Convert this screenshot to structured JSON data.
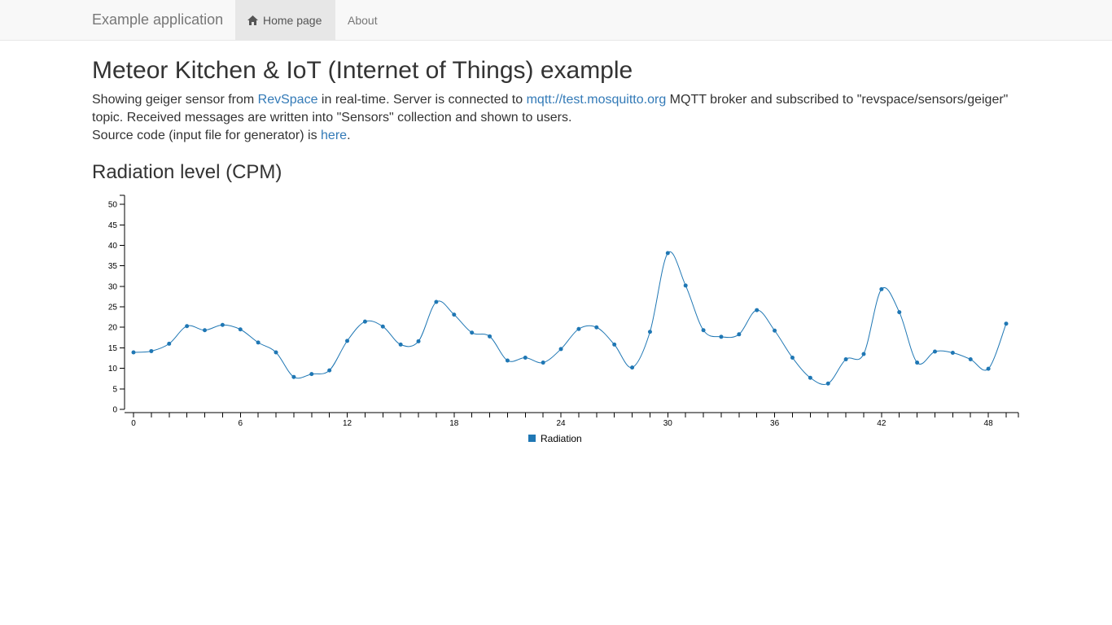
{
  "navbar": {
    "brand": "Example application",
    "items": [
      {
        "label": "Home page",
        "icon": "home-icon",
        "active": true
      },
      {
        "label": "About",
        "active": false
      }
    ]
  },
  "page": {
    "title": "Meteor Kitchen & IoT (Internet of Things) example",
    "description": {
      "part1": "Showing geiger sensor from ",
      "link1": "RevSpace",
      "part2": " in real-time. Server is connected to ",
      "link2": "mqtt://test.mosquitto.org",
      "part3": " MQTT broker and subscribed to \"revspace/sensors/geiger\" topic. Received messages are written into \"Sensors\" collection and shown to users.",
      "part4": "Source code (input file for generator) is ",
      "link3": "here",
      "part5": "."
    },
    "chart_title": "Radiation level (CPM)"
  },
  "colors": {
    "accent": "#1f77b4",
    "link": "#337ab7"
  },
  "chart_data": {
    "type": "line",
    "title": "Radiation level (CPM)",
    "xlabel": "",
    "ylabel": "",
    "x": [
      0,
      1,
      2,
      3,
      4,
      5,
      6,
      7,
      8,
      9,
      10,
      11,
      12,
      13,
      14,
      15,
      16,
      17,
      18,
      19,
      20,
      21,
      22,
      23,
      24,
      25,
      26,
      27,
      28,
      29,
      30,
      31,
      32,
      33,
      34,
      35,
      36,
      37,
      38,
      39,
      40,
      41,
      42,
      43,
      44,
      45,
      46,
      47,
      48,
      49
    ],
    "x_ticks": [
      "0",
      "6",
      "12",
      "18",
      "24",
      "30",
      "36",
      "42",
      "48"
    ],
    "y_ticks": [
      "0",
      "5",
      "10",
      "15",
      "20",
      "25",
      "30",
      "35",
      "40",
      "45",
      "50"
    ],
    "xlim": [
      0,
      49
    ],
    "ylim": [
      0,
      52
    ],
    "series": [
      {
        "name": "Radiation",
        "values": [
          13.9,
          14.2,
          16.0,
          20.3,
          19.3,
          20.6,
          19.5,
          16.3,
          13.9,
          7.9,
          8.6,
          9.5,
          16.7,
          21.4,
          20.2,
          15.8,
          16.6,
          26.2,
          23.1,
          18.7,
          17.8,
          11.9,
          12.6,
          11.4,
          14.7,
          19.6,
          20.0,
          15.8,
          10.2,
          18.9,
          38.1,
          30.2,
          19.3,
          17.7,
          18.3,
          24.2,
          19.2,
          12.6,
          7.7,
          6.3,
          12.2,
          13.5,
          29.3,
          23.7,
          11.4,
          14.1,
          13.8,
          12.2,
          9.9,
          20.9
        ]
      }
    ],
    "grid": false,
    "legend": "bottom-center",
    "tick_every_x": 1,
    "label_every_x": 6
  }
}
